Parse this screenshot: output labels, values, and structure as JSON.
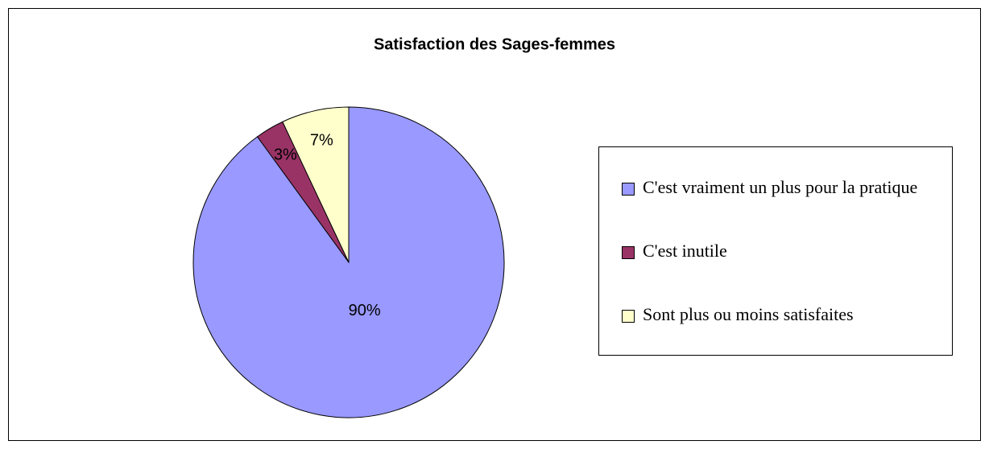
{
  "chart_data": {
    "type": "pie",
    "title": "Satisfaction des Sages-femmes",
    "categories": [
      "C'est vraiment un plus pour la pratique",
      "C'est inutile",
      "Sont plus ou moins satisfaites"
    ],
    "values": [
      90,
      3,
      7
    ],
    "value_labels": [
      "90%",
      "3%",
      "7%"
    ],
    "colors": [
      "#9999ff",
      "#993366",
      "#ffffcc"
    ],
    "legend": "right"
  }
}
